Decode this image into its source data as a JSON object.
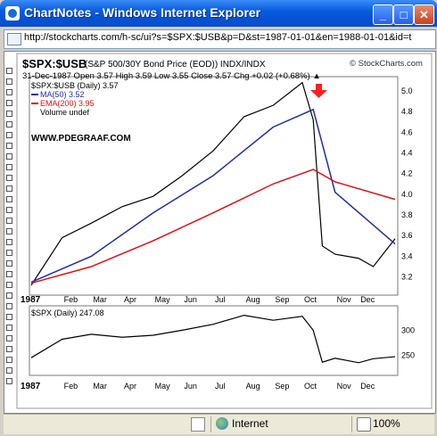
{
  "window": {
    "title": "ChartNotes - Windows Internet Explorer",
    "address": "http://stockcharts.com/h-sc/ui?s=$SPX:$USB&p=D&st=1987-01-01&en=1988-01-01&id=t"
  },
  "chart": {
    "header_symbol": "$SPX:$USB",
    "header_desc": "(S&P 500/30Y Bond Price (EOD))  INDX/INDX",
    "copyright": "© StockCharts.com",
    "date_line": "31-Dec-1987   Open 3.57   High 3.59   Low 3.55   Close 3.57   Chg +0.02 (+0.68%) ▲",
    "legend_price": "$SPX:$USB (Daily) 3.57",
    "legend_ma": "MA(50) 3.52",
    "legend_ema": "EMA(200) 3.95",
    "legend_volume": "Volume undef",
    "watermark": "WWW.PDEGRAAF.COM",
    "lower_legend": "$SPX (Daily) 247.08",
    "year_label": "1987",
    "months": [
      "Feb",
      "Mar",
      "Apr",
      "May",
      "Jun",
      "Jul",
      "Aug",
      "Sep",
      "Oct",
      "Nov",
      "Dec"
    ],
    "upper_ticks": [
      "5.0",
      "4.8",
      "4.6",
      "4.4",
      "4.2",
      "4.0",
      "3.8",
      "3.6",
      "3.4",
      "3.2"
    ],
    "lower_ticks": [
      "300",
      "250"
    ]
  },
  "chart_data": [
    {
      "type": "line",
      "title": "$SPX:$USB",
      "ylim": [
        3.05,
        5.12
      ],
      "series": [
        {
          "name": "$SPX:$USB (Daily) 3.57",
          "x": [
            "Jan",
            "Feb",
            "Mar",
            "Apr",
            "May",
            "Jun",
            "Jul",
            "Aug",
            "Sep",
            "Oct-early",
            "Oct-mid",
            "Oct-late",
            "Nov",
            "Dec-early",
            "Dec-mid",
            "Dec-late"
          ],
          "values": [
            3.12,
            3.58,
            3.72,
            3.88,
            3.98,
            4.18,
            4.42,
            4.75,
            4.86,
            5.08,
            4.72,
            3.5,
            3.42,
            3.38,
            3.3,
            3.57
          ]
        },
        {
          "name": "MA(50) 3.52",
          "x": [
            "Jan",
            "Mar",
            "May",
            "Jul",
            "Sep",
            "Oct-mid",
            "Nov",
            "Dec-late"
          ],
          "values": [
            3.15,
            3.4,
            3.82,
            4.18,
            4.65,
            4.82,
            4.02,
            3.52
          ]
        },
        {
          "name": "EMA(200) 3.95",
          "x": [
            "Jan",
            "Mar",
            "May",
            "Jul",
            "Sep",
            "Oct-mid",
            "Nov",
            "Dec-late"
          ],
          "values": [
            3.14,
            3.3,
            3.55,
            3.82,
            4.1,
            4.24,
            4.12,
            3.95
          ]
        }
      ]
    },
    {
      "type": "line",
      "title": "$SPX (Daily) 247.08",
      "ylim": [
        215,
        340
      ],
      "series": [
        {
          "name": "$SPX (Daily) 247.08",
          "x": [
            "Jan",
            "Feb",
            "Mar",
            "Apr",
            "May",
            "Jun",
            "Jul",
            "Aug",
            "Sep",
            "Oct-early",
            "Oct-mid",
            "Oct-late",
            "Nov",
            "Dec-early",
            "Dec-mid",
            "Dec-late"
          ],
          "values": [
            245,
            282,
            292,
            286,
            290,
            300,
            312,
            330,
            320,
            328,
            300,
            236,
            244,
            235,
            243,
            247
          ]
        }
      ]
    }
  ],
  "statusbar": {
    "zone": "Internet",
    "zoom": "100%"
  }
}
